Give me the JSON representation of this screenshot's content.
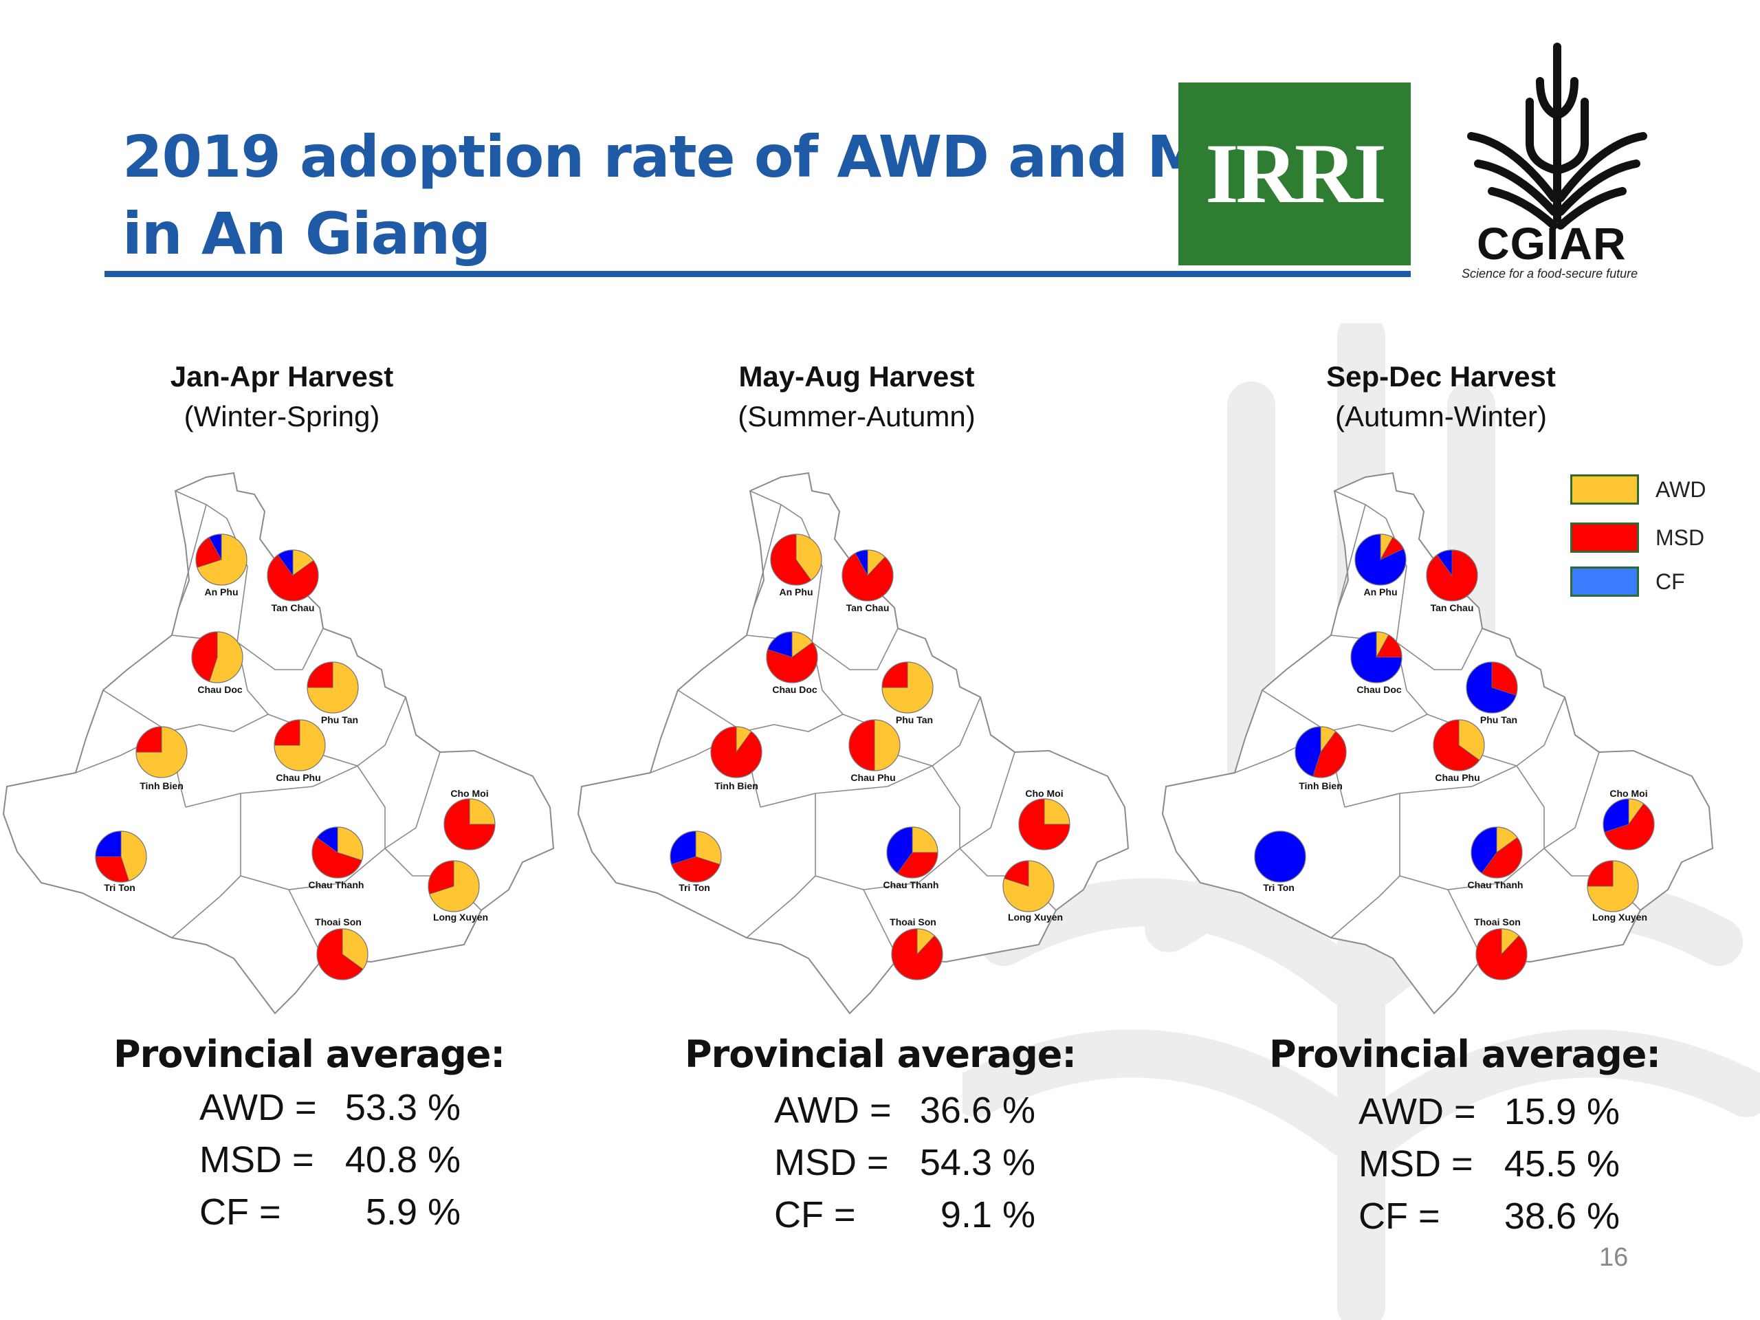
{
  "title": {
    "line1": "2019 adoption rate of AWD and MSD",
    "line2": "in An Giang"
  },
  "logos": {
    "irri": {
      "text": "IRRI",
      "color": "#2e7d32"
    },
    "cgiar": {
      "text": "CGIAR",
      "tagline": "Science for a food-secure future"
    }
  },
  "colors": {
    "AWD": "#ffc533",
    "MSD": "#ff0000",
    "CF": "#0000ff",
    "title": "#1f5aa6",
    "map_line": "#8a8a8a"
  },
  "legend": [
    {
      "label": "AWD",
      "color": "#ffc533"
    },
    {
      "label": "MSD",
      "color": "#ff0000"
    },
    {
      "label": "CF",
      "color": "#3b7cff"
    }
  ],
  "panels": [
    {
      "heading": "Jan-Apr Harvest",
      "subheading": "(Winter-Spring)",
      "prov_title": "Provincial average:",
      "stats": [
        {
          "label": "AWD =",
          "value": "53.3 %"
        },
        {
          "label": "MSD =",
          "value": "40.8 %"
        },
        {
          "label": "CF =",
          "value": "5.9 %"
        }
      ]
    },
    {
      "heading": "May-Aug Harvest",
      "subheading": "(Summer-Autumn)",
      "prov_title": "Provincial average:",
      "stats": [
        {
          "label": "AWD =",
          "value": "36.6 %"
        },
        {
          "label": "MSD =",
          "value": "54.3 %"
        },
        {
          "label": "CF =",
          "value": "9.1 %"
        }
      ]
    },
    {
      "heading": "Sep-Dec Harvest",
      "subheading": "(Autumn-Winter)",
      "prov_title": "Provincial average:",
      "stats": [
        {
          "label": "AWD =",
          "value": "15.9 %"
        },
        {
          "label": "MSD =",
          "value": "45.5 %"
        },
        {
          "label": "CF =",
          "value": "38.6 %"
        }
      ]
    }
  ],
  "chart_data": [
    {
      "type": "pie",
      "title": "Jan-Apr Harvest",
      "series_order": [
        "AWD",
        "MSD",
        "CF"
      ],
      "districts": [
        {
          "name": "An Phu",
          "AWD": 70,
          "MSD": 22,
          "CF": 8
        },
        {
          "name": "Tan Chau",
          "AWD": 15,
          "MSD": 75,
          "CF": 10
        },
        {
          "name": "Chau Doc",
          "AWD": 55,
          "MSD": 45,
          "CF": 0
        },
        {
          "name": "Phu Tan",
          "AWD": 75,
          "MSD": 25,
          "CF": 0
        },
        {
          "name": "Tinh Bien",
          "AWD": 75,
          "MSD": 25,
          "CF": 0
        },
        {
          "name": "Chau Phu",
          "AWD": 75,
          "MSD": 25,
          "CF": 0
        },
        {
          "name": "Cho Moi",
          "AWD": 25,
          "MSD": 75,
          "CF": 0
        },
        {
          "name": "Tri Ton",
          "AWD": 45,
          "MSD": 30,
          "CF": 25
        },
        {
          "name": "Chau Thanh",
          "AWD": 30,
          "MSD": 55,
          "CF": 15
        },
        {
          "name": "Long Xuyen",
          "AWD": 70,
          "MSD": 30,
          "CF": 0
        },
        {
          "name": "Thoai Son",
          "AWD": 35,
          "MSD": 65,
          "CF": 0
        }
      ]
    },
    {
      "type": "pie",
      "title": "May-Aug Harvest",
      "series_order": [
        "AWD",
        "MSD",
        "CF"
      ],
      "districts": [
        {
          "name": "An Phu",
          "AWD": 40,
          "MSD": 60,
          "CF": 0
        },
        {
          "name": "Tan Chau",
          "AWD": 12,
          "MSD": 80,
          "CF": 8
        },
        {
          "name": "Chau Doc",
          "AWD": 15,
          "MSD": 65,
          "CF": 20
        },
        {
          "name": "Phu Tan",
          "AWD": 75,
          "MSD": 25,
          "CF": 0
        },
        {
          "name": "Tinh Bien",
          "AWD": 10,
          "MSD": 90,
          "CF": 0
        },
        {
          "name": "Chau Phu",
          "AWD": 50,
          "MSD": 50,
          "CF": 0
        },
        {
          "name": "Cho Moi",
          "AWD": 25,
          "MSD": 75,
          "CF": 0
        },
        {
          "name": "Tri Ton",
          "AWD": 30,
          "MSD": 40,
          "CF": 30
        },
        {
          "name": "Chau Thanh",
          "AWD": 25,
          "MSD": 35,
          "CF": 40
        },
        {
          "name": "Long Xuyen",
          "AWD": 80,
          "MSD": 20,
          "CF": 0
        },
        {
          "name": "Thoai Son",
          "AWD": 12,
          "MSD": 88,
          "CF": 0
        }
      ]
    },
    {
      "type": "pie",
      "title": "Sep-Dec Harvest",
      "series_order": [
        "AWD",
        "MSD",
        "CF"
      ],
      "districts": [
        {
          "name": "An Phu",
          "AWD": 8,
          "MSD": 10,
          "CF": 82
        },
        {
          "name": "Tan Chau",
          "AWD": 0,
          "MSD": 90,
          "CF": 10
        },
        {
          "name": "Chau Doc",
          "AWD": 8,
          "MSD": 17,
          "CF": 75
        },
        {
          "name": "Phu Tan",
          "AWD": 0,
          "MSD": 30,
          "CF": 70
        },
        {
          "name": "Tinh Bien",
          "AWD": 10,
          "MSD": 45,
          "CF": 45
        },
        {
          "name": "Chau Phu",
          "AWD": 35,
          "MSD": 65,
          "CF": 0
        },
        {
          "name": "Cho Moi",
          "AWD": 10,
          "MSD": 60,
          "CF": 30
        },
        {
          "name": "Tri Ton",
          "AWD": 0,
          "MSD": 0,
          "CF": 100
        },
        {
          "name": "Chau Thanh",
          "AWD": 15,
          "MSD": 45,
          "CF": 40
        },
        {
          "name": "Long Xuyen",
          "AWD": 75,
          "MSD": 25,
          "CF": 0
        },
        {
          "name": "Thoai Son",
          "AWD": 12,
          "MSD": 88,
          "CF": 0
        }
      ]
    }
  ],
  "page_number": "16"
}
